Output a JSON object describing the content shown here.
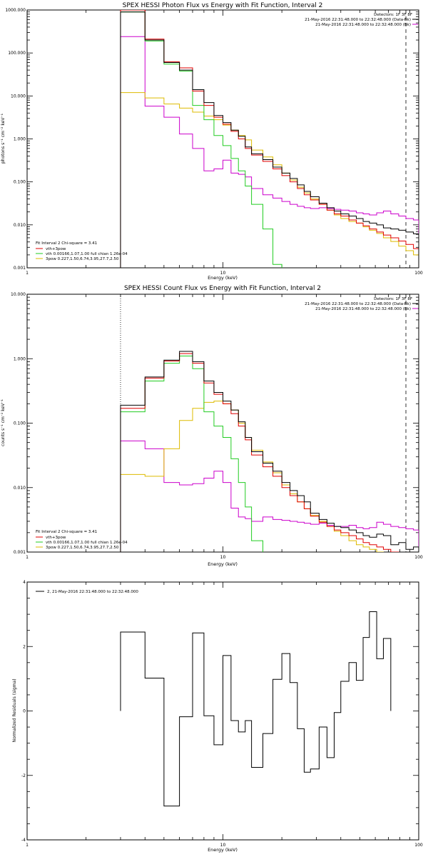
{
  "chart_data": [
    {
      "type": "line",
      "title": "SPEX HESSI Photon Flux vs Energy with Fit Function, Interval 2",
      "xlabel": "Energy (keV)",
      "ylabel": "photons s⁻¹ cm⁻² keV⁻¹",
      "xscale": "log",
      "yscale": "log",
      "xlim": [
        1,
        100
      ],
      "ylim": [
        0.001,
        1000
      ],
      "x_ticks": [
        {
          "v": 1,
          "label": "1"
        },
        {
          "v": 10,
          "label": "10"
        },
        {
          "v": 100,
          "label": "100"
        }
      ],
      "y_ticks": [
        {
          "v": 0.001,
          "label": "0.001"
        },
        {
          "v": 0.01,
          "label": "0.010"
        },
        {
          "v": 0.1,
          "label": "0.100"
        },
        {
          "v": 1,
          "label": "1.000"
        },
        {
          "v": 10,
          "label": "10.000"
        },
        {
          "v": 100,
          "label": "100.000"
        },
        {
          "v": 1000,
          "label": "1000.000"
        }
      ],
      "header_right": [
        "Detectors: 1F 3F 8F",
        "21-May-2016 22:31:48.000 to 22:32:48.000 (Data-Bk)",
        "21-May-2016 22:31:48.000 to 22:32:48.000 (Bk)"
      ],
      "fit_label": "Fit Interval 2   Chi-square = 3.41",
      "bin_edges": [
        3,
        4,
        5,
        6,
        7,
        8,
        9,
        10,
        11,
        12,
        13,
        14,
        16,
        18,
        20,
        22,
        24,
        26,
        28,
        31,
        34,
        37,
        40,
        44,
        48,
        52,
        56,
        61,
        66,
        72,
        79,
        86,
        94,
        100
      ],
      "vline_dotted": 3,
      "vline_dashed": 86,
      "series": [
        {
          "name": "",
          "color": "#000000",
          "values": [
            900,
            200,
            60,
            40,
            14,
            7,
            3.5,
            2.4,
            1.6,
            1.15,
            0.65,
            0.45,
            0.33,
            0.22,
            0.16,
            0.12,
            0.085,
            0.06,
            0.045,
            0.032,
            0.025,
            0.021,
            0.018,
            0.016,
            0.014,
            0.012,
            0.011,
            0.01,
            0.0085,
            0.008,
            0.0075,
            0.0068,
            0.0062
          ]
        },
        {
          "name": "vth+3pow",
          "color": "#e00000",
          "values": [
            1000,
            210,
            62,
            45,
            13,
            6,
            3.2,
            2.2,
            1.5,
            1.0,
            0.6,
            0.42,
            0.3,
            0.2,
            0.14,
            0.1,
            0.07,
            0.05,
            0.038,
            0.03,
            0.022,
            0.018,
            0.016,
            0.013,
            0.011,
            0.0095,
            0.008,
            0.0068,
            0.0058,
            0.005,
            0.0042,
            0.0035,
            0.0028
          ]
        },
        {
          "name": "vth 0.00166,1.07,1.00  full chian 1.26e-04",
          "color": "#22cc22",
          "values": [
            900,
            190,
            55,
            38,
            6,
            2.8,
            1.2,
            0.7,
            0.35,
            0.18,
            0.08,
            0.03,
            0.008,
            0.0012,
            0.0002
          ]
        },
        {
          "name": "3pow 0.227,1.50,6.74,3.95,27.7,2.50",
          "color": "#ddbb00",
          "values": [
            12,
            9,
            6.5,
            5.2,
            4.2,
            3.4,
            2.8,
            2.1,
            1.6,
            1.2,
            0.95,
            0.55,
            0.38,
            0.25,
            0.16,
            0.11,
            0.075,
            0.055,
            0.04,
            0.03,
            0.022,
            0.017,
            0.014,
            0.012,
            0.011,
            0.009,
            0.0075,
            0.0063,
            0.005,
            0.0041,
            0.0032,
            0.0025,
            0.002
          ]
        },
        {
          "name": "",
          "color": "#cc00cc",
          "values": [
            240,
            5.8,
            3.2,
            1.3,
            0.6,
            0.18,
            0.2,
            0.32,
            0.16,
            0.15,
            0.13,
            0.07,
            0.05,
            0.042,
            0.035,
            0.03,
            0.027,
            0.025,
            0.024,
            0.025,
            0.024,
            0.023,
            0.022,
            0.021,
            0.019,
            0.018,
            0.017,
            0.019,
            0.021,
            0.018,
            0.016,
            0.014,
            0.013
          ]
        }
      ]
    },
    {
      "type": "line",
      "title": "SPEX HESSI Count Flux vs Energy with Fit Function, Interval 2",
      "xlabel": "Energy (keV)",
      "ylabel": "counts s⁻¹ cm⁻² keV⁻¹",
      "xscale": "log",
      "yscale": "log",
      "xlim": [
        1,
        100
      ],
      "ylim": [
        0.001,
        10
      ],
      "x_ticks": [
        {
          "v": 1,
          "label": "1"
        },
        {
          "v": 10,
          "label": "10"
        },
        {
          "v": 100,
          "label": "100"
        }
      ],
      "y_ticks": [
        {
          "v": 0.001,
          "label": "0.001"
        },
        {
          "v": 0.01,
          "label": "0.010"
        },
        {
          "v": 0.1,
          "label": "0.100"
        },
        {
          "v": 1,
          "label": "1.000"
        },
        {
          "v": 10,
          "label": "10.000"
        }
      ],
      "header_right": [
        "Detectors: 1F 3F 8F",
        "21-May-2016 22:31:48.000 to 22:32:48.000 (Data-Bk)",
        "21-May-2016 22:31:48.000 to 22:32:48.000 (Bk)"
      ],
      "fit_label": "Fit Interval 2   Chi-square = 3.41",
      "bin_edges": [
        3,
        4,
        5,
        6,
        7,
        8,
        9,
        10,
        11,
        12,
        13,
        14,
        16,
        18,
        20,
        22,
        24,
        26,
        28,
        31,
        34,
        37,
        40,
        44,
        48,
        52,
        56,
        61,
        66,
        72,
        79,
        86,
        94,
        100
      ],
      "vline_dotted": 3,
      "vline_dashed": 86,
      "series": [
        {
          "name": "",
          "color": "#000000",
          "values": [
            0.19,
            0.52,
            0.95,
            1.3,
            0.9,
            0.45,
            0.3,
            0.22,
            0.16,
            0.105,
            0.06,
            0.036,
            0.024,
            0.018,
            0.012,
            0.009,
            0.0075,
            0.006,
            0.004,
            0.0032,
            0.0028,
            0.0025,
            0.0024,
            0.0022,
            0.002,
            0.0018,
            0.0017,
            0.0019,
            0.0018,
            0.0013,
            0.0014,
            0.0011,
            0.0012
          ]
        },
        {
          "name": "vth+3pow",
          "color": "#e00000",
          "values": [
            0.17,
            0.5,
            0.92,
            1.2,
            0.85,
            0.42,
            0.28,
            0.2,
            0.14,
            0.09,
            0.055,
            0.032,
            0.021,
            0.015,
            0.01,
            0.0075,
            0.006,
            0.0047,
            0.0036,
            0.0029,
            0.0025,
            0.0022,
            0.002,
            0.0018,
            0.0016,
            0.0014,
            0.0013,
            0.0012,
            0.0011,
            0.001,
            0.0009,
            0.00085,
            0.0008
          ]
        },
        {
          "name": "vth 0.00166,1.07,1.00  full chian 1.26e-04",
          "color": "#22cc22",
          "values": [
            0.15,
            0.45,
            0.85,
            1.1,
            0.7,
            0.15,
            0.09,
            0.06,
            0.028,
            0.012,
            0.005,
            0.0015,
            0.0004
          ]
        },
        {
          "name": "3pow 0.227,1.50,6.74,3.95,27.7,2.50",
          "color": "#ddbb00",
          "values": [
            0.016,
            0.015,
            0.04,
            0.11,
            0.17,
            0.21,
            0.22,
            0.2,
            0.16,
            0.1,
            0.06,
            0.038,
            0.025,
            0.017,
            0.011,
            0.008,
            0.006,
            0.0047,
            0.0037,
            0.003,
            0.0025,
            0.0021,
            0.0018,
            0.0015,
            0.0013,
            0.0012,
            0.0011,
            0.001,
            0.0009,
            0.00085,
            0.0008,
            0.00075,
            0.0007
          ]
        },
        {
          "name": "",
          "color": "#cc00cc",
          "values": [
            0.053,
            0.04,
            0.012,
            0.011,
            0.0115,
            0.014,
            0.018,
            0.012,
            0.0048,
            0.0035,
            0.0033,
            0.003,
            0.0035,
            0.0032,
            0.0031,
            0.003,
            0.0029,
            0.0028,
            0.0027,
            0.0028,
            0.0026,
            0.0025,
            0.0025,
            0.0026,
            0.0024,
            0.0023,
            0.0024,
            0.0029,
            0.0027,
            0.0025,
            0.0024,
            0.0023,
            0.0022
          ]
        }
      ]
    },
    {
      "type": "line",
      "title": "",
      "xlabel": "Energy (keV)",
      "ylabel": "Normalized Residuals (sigma)",
      "xscale": "log",
      "yscale": "linear",
      "xlim": [
        1,
        100
      ],
      "ylim": [
        -4,
        4
      ],
      "x_ticks": [
        {
          "v": 1,
          "label": "1"
        },
        {
          "v": 10,
          "label": "10"
        },
        {
          "v": 100,
          "label": "100"
        }
      ],
      "y_ticks": [
        {
          "v": -4,
          "label": "-4"
        },
        {
          "v": -2,
          "label": "-2"
        },
        {
          "v": 0,
          "label": "0"
        },
        {
          "v": 2,
          "label": "2"
        },
        {
          "v": 4,
          "label": "4"
        }
      ],
      "legend": "2, 21-May-2016 22:31:48.000 to 22:32:48.000",
      "bin_edges": [
        3,
        4,
        5,
        6,
        7,
        8,
        9,
        10,
        11,
        12,
        13,
        14,
        16,
        18,
        20,
        22,
        24,
        26,
        28,
        31,
        34,
        37,
        40,
        44,
        48,
        52,
        56,
        61,
        66,
        72,
        79,
        86,
        94,
        100
      ],
      "series": [
        {
          "name": "",
          "color": "#000000",
          "values": [
            2.45,
            1.02,
            -2.95,
            -0.18,
            2.42,
            -0.15,
            -1.05,
            1.72,
            -0.3,
            -0.65,
            -0.3,
            -1.75,
            -0.7,
            0.98,
            1.78,
            0.88,
            -0.55,
            -1.9,
            -1.8,
            -0.5,
            -1.45,
            -0.05,
            0.92,
            1.5,
            0.95,
            2.28,
            3.08,
            1.62,
            2.25
          ]
        }
      ]
    }
  ]
}
